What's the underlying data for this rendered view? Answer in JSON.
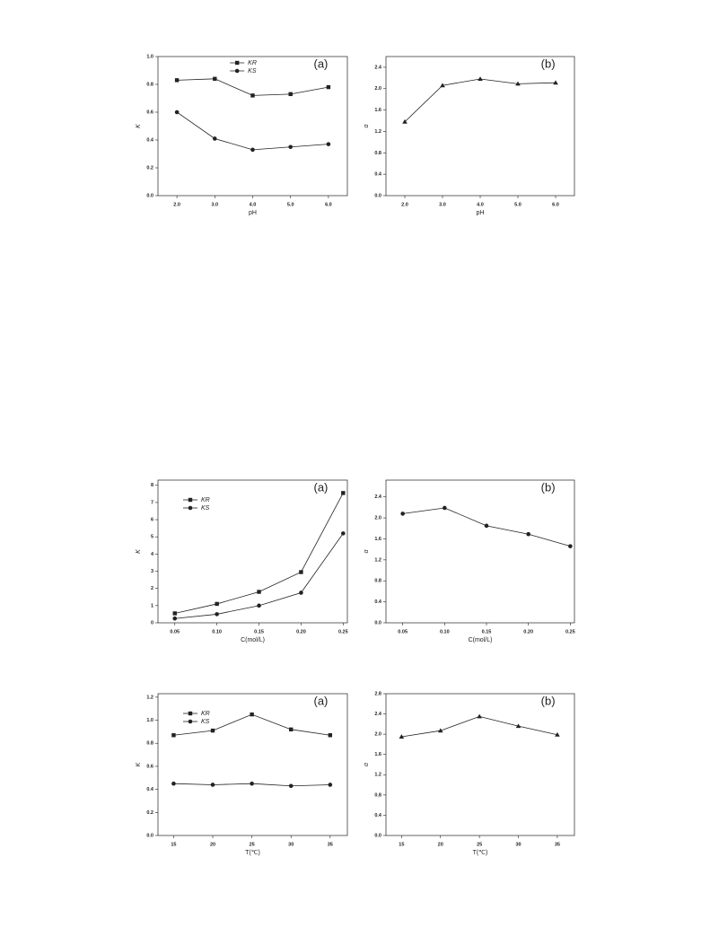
{
  "chart_data": [
    {
      "type": "line",
      "annotation": "(a)",
      "x_label": "pH",
      "y_label": "K",
      "x": [
        2,
        3,
        4,
        5,
        6
      ],
      "xlim": [
        1.5,
        6.5
      ],
      "xticks": [
        {
          "value": 2,
          "label": "2.0"
        },
        {
          "value": 3,
          "label": "3.0"
        },
        {
          "value": 4,
          "label": "4.0"
        },
        {
          "value": 5,
          "label": "5.0"
        },
        {
          "value": 6,
          "label": "6.0"
        }
      ],
      "ylim": [
        0,
        1
      ],
      "yticks": [
        {
          "value": 0,
          "label": "0.0"
        },
        0.2,
        0.4,
        0.6,
        0.8,
        {
          "value": 1,
          "label": "1.0"
        }
      ],
      "legend": "upper center",
      "series": [
        {
          "name": "KR",
          "color": "#222222",
          "marker": "square",
          "values": [
            0.83,
            0.84,
            0.72,
            0.73,
            0.78
          ]
        },
        {
          "name": "KS",
          "color": "#222222",
          "marker": "circle",
          "values": [
            0.6,
            0.41,
            0.33,
            0.35,
            0.37
          ]
        }
      ]
    },
    {
      "type": "line",
      "annotation": "(b)",
      "x_label": "pH",
      "y_label": "α",
      "x": [
        2,
        3,
        4,
        5,
        6
      ],
      "xlim": [
        1.5,
        6.5
      ],
      "xticks": [
        {
          "value": 2,
          "label": "2.0"
        },
        {
          "value": 3,
          "label": "3.0"
        },
        {
          "value": 4,
          "label": "4.0"
        },
        {
          "value": 5,
          "label": "5.0"
        },
        {
          "value": 6,
          "label": "6.0"
        }
      ],
      "ylim": [
        0,
        2.6
      ],
      "yticks": [
        {
          "value": 0,
          "label": "0.0"
        },
        0.4,
        0.8,
        1.2,
        1.6,
        {
          "value": 2,
          "label": "2.0"
        },
        2.4
      ],
      "color": "#222222",
      "marker": "triangle",
      "values": [
        1.38,
        2.06,
        2.18,
        2.09,
        2.11
      ]
    },
    {
      "type": "line",
      "annotation": "(a)",
      "x_label": "C(mol/L)",
      "y_label": "K",
      "x": [
        0.05,
        0.1,
        0.15,
        0.2,
        0.25
      ],
      "xlim": [
        0.03,
        0.255
      ],
      "xticks": [
        0.05,
        {
          "value": 0.1,
          "label": "0.10"
        },
        0.15,
        {
          "value": 0.2,
          "label": "0.20"
        },
        0.25
      ],
      "ylim": [
        0,
        8.3
      ],
      "yticks": [
        0,
        1,
        2,
        3,
        4,
        5,
        6,
        7,
        8
      ],
      "legend": "upper left",
      "series": [
        {
          "name": "KR",
          "color": "#222222",
          "marker": "square",
          "values": [
            0.55,
            1.1,
            1.8,
            2.95,
            7.55
          ]
        },
        {
          "name": "KS",
          "color": "#222222",
          "marker": "circle",
          "values": [
            0.25,
            0.5,
            1.0,
            1.75,
            5.2
          ]
        }
      ]
    },
    {
      "type": "line",
      "annotation": "(b)",
      "x_label": "C(mol/L)",
      "y_label": "α",
      "x": [
        0.05,
        0.1,
        0.15,
        0.2,
        0.25
      ],
      "xlim": [
        0.03,
        0.255
      ],
      "xticks": [
        0.05,
        {
          "value": 0.1,
          "label": "0.10"
        },
        0.15,
        {
          "value": 0.2,
          "label": "0.20"
        },
        0.25
      ],
      "ylim": [
        0,
        2.72
      ],
      "yticks": [
        {
          "value": 0,
          "label": "0.0"
        },
        0.4,
        0.8,
        1.2,
        1.6,
        {
          "value": 2,
          "label": "2.0"
        },
        2.4
      ],
      "color": "#222222",
      "marker": "circle",
      "values": [
        2.08,
        2.19,
        1.85,
        1.69,
        1.46
      ]
    },
    {
      "type": "line",
      "annotation": "(a)",
      "x_label": "T(℃)",
      "y_label": "K",
      "x": [
        15,
        20,
        25,
        30,
        35
      ],
      "xlim": [
        13,
        37.2
      ],
      "xticks": [
        15,
        20,
        25,
        30,
        35
      ],
      "ylim": [
        0,
        1.23
      ],
      "yticks": [
        {
          "value": 0,
          "label": "0.0"
        },
        0.2,
        0.4,
        0.6,
        0.8,
        {
          "value": 1,
          "label": "1.0"
        },
        {
          "value": 1.2,
          "label": "1.2"
        }
      ],
      "legend": "upper left",
      "series": [
        {
          "name": "KR",
          "color": "#222222",
          "marker": "square",
          "values": [
            0.87,
            0.91,
            1.05,
            0.92,
            0.87
          ]
        },
        {
          "name": "KS",
          "color": "#222222",
          "marker": "circle",
          "values": [
            0.45,
            0.44,
            0.45,
            0.43,
            0.44
          ]
        }
      ]
    },
    {
      "type": "line",
      "annotation": "(b)",
      "x_label": "T(℃)",
      "y_label": "α",
      "x": [
        15,
        20,
        25,
        30,
        35
      ],
      "xlim": [
        13,
        37.2
      ],
      "xticks": [
        15,
        20,
        25,
        30,
        35
      ],
      "ylim": [
        0,
        2.8
      ],
      "yticks": [
        {
          "value": 0,
          "label": "0.0"
        },
        0.4,
        0.8,
        1.2,
        1.6,
        {
          "value": 2,
          "label": "2.0"
        },
        2.4,
        2.8
      ],
      "color": "#222222",
      "marker": "triangle",
      "values": [
        1.95,
        2.07,
        2.35,
        2.16,
        1.99
      ]
    }
  ]
}
